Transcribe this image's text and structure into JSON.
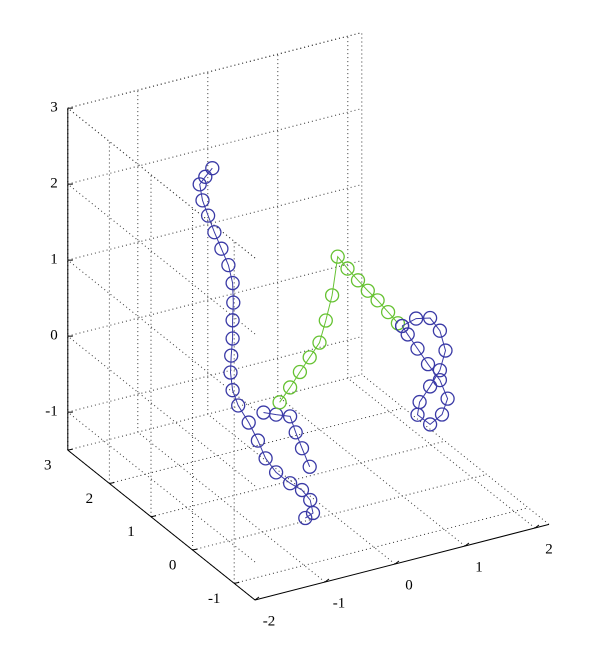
{
  "chart_data": {
    "type": "line3d",
    "grid": true,
    "xlim": [
      -2,
      2.2
    ],
    "ylim": [
      -1.5,
      3
    ],
    "zlim": [
      -1.5,
      3
    ],
    "xticks": [
      -2,
      -1,
      0,
      1,
      2
    ],
    "yticks": [
      -1,
      0,
      1,
      2,
      3
    ],
    "zticks": [
      -1,
      0,
      1,
      2,
      3
    ],
    "series": [
      {
        "color": "#3a3aa6",
        "marker": "circle",
        "x": [
          -0.53,
          -0.63,
          -0.71,
          -0.67,
          -0.59,
          -0.5,
          -0.4,
          -0.3,
          -0.24,
          -0.23,
          -0.24,
          -0.24,
          -0.26,
          -0.27,
          -0.24,
          -0.16,
          -0.01,
          -0.77,
          -0.66,
          -0.51,
          -0.31,
          -0.14,
          -0.32,
          -0.28,
          -0.39
        ],
        "y": [
          2,
          2,
          2,
          2,
          2,
          2,
          2,
          2,
          2,
          2,
          2,
          2,
          2,
          2,
          2,
          2,
          2,
          0.5,
          0.5,
          0.5,
          0.5,
          0.5,
          0,
          0,
          0
        ],
        "z": [
          2.3,
          2.21,
          2.13,
          1.91,
          1.69,
          1.45,
          1.21,
          0.97,
          0.72,
          0.46,
          0.23,
          -0.01,
          -0.23,
          -0.45,
          -0.69,
          -0.91,
          -1.17,
          -0.57,
          -0.83,
          -1.05,
          -1.24,
          -1.37,
          -1.24,
          -1.42,
          -1.46
        ]
      },
      {
        "color": "#3a3aa6",
        "marker": "circle",
        "x": [
          -0.69,
          -0.51,
          -0.31,
          -0.23,
          -0.14,
          -0.03
        ],
        "y": [
          0.5,
          0.5,
          0.5,
          0.5,
          0.5,
          0.5
        ],
        "z": [
          -0.22,
          -0.29,
          -0.36,
          -0.59,
          -0.82,
          -1.09
        ]
      },
      {
        "color": "#66c232",
        "marker": "circle",
        "x": [
          -0.46,
          -0.31,
          -0.17,
          -0.03,
          0.11,
          0.2,
          0.29,
          0.37,
          0.51,
          0.66,
          0.8,
          0.94,
          1.09,
          1.23
        ],
        "y": [
          0.5,
          0.5,
          0.5,
          0.5,
          0.5,
          0.5,
          0.5,
          0.5,
          0.5,
          0.5,
          0.5,
          0.5,
          0.5,
          0.5
        ],
        "z": [
          -0.14,
          0.02,
          0.19,
          0.35,
          0.51,
          0.78,
          1.09,
          1.58,
          1.39,
          1.2,
          1.03,
          0.87,
          0.68,
          0.5
        ]
      },
      {
        "color": "#3a3aa6",
        "marker": "circle",
        "x": [
          1.29,
          1.49,
          1.69,
          1.83,
          1.91,
          1.83,
          1.69,
          1.54,
          1.51,
          1.69,
          1.86,
          1.94,
          1.83,
          1.66,
          1.51,
          1.37,
          1.29
        ],
        "y": [
          0.5,
          0.5,
          0.5,
          0.5,
          0.5,
          0.5,
          0.5,
          0.5,
          0.5,
          0.5,
          0.5,
          0.5,
          0.5,
          0.5,
          0.5,
          0.5,
          0.5
        ],
        "z": [
          0.45,
          0.5,
          0.46,
          0.26,
          -0.02,
          -0.26,
          -0.44,
          -0.61,
          -0.77,
          -0.94,
          -0.85,
          -0.66,
          -0.39,
          -0.14,
          0.1,
          0.32,
          0.45
        ]
      }
    ]
  }
}
